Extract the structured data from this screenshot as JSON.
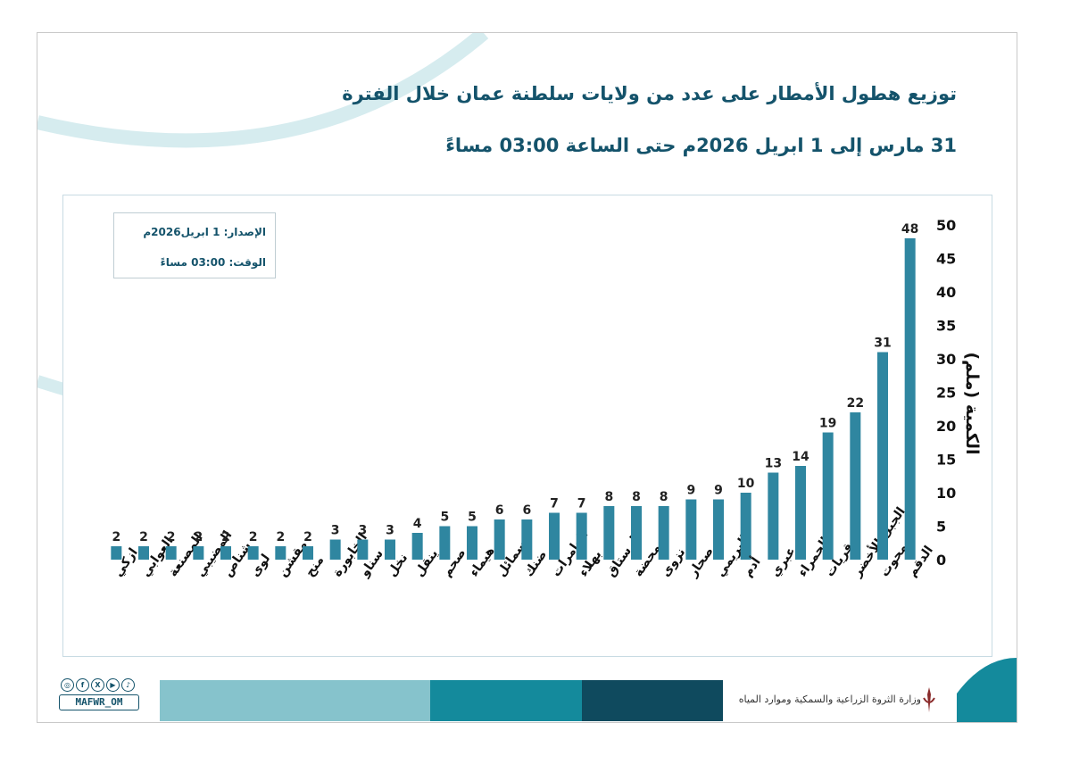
{
  "title_line1": "توزيع هطول الأمطار على عدد من ولايات سلطنة عمان خلال الفترة",
  "title_line2": "31 مارس إلى 1 ابريل 2026م حتى الساعة 03:00 مساءً",
  "info": {
    "release": "الإصدار: 1 ابريل2026م",
    "time": "الوقت: 03:00 مساءً"
  },
  "footer": {
    "ministry": "وزارة الثروة الزراعية والسمكية وموارد المياه",
    "social_handle": "MAFWR_OM",
    "social_icons": [
      "instagram-icon",
      "facebook-icon",
      "x-icon",
      "youtube-icon",
      "tiktok-icon"
    ]
  },
  "colors": {
    "bar": "#2f86a0",
    "title": "#14536b",
    "band_light": "#86c3cc",
    "band_mid": "#148a9c",
    "band_dark": "#0f4a5e"
  },
  "chart_data": {
    "type": "bar",
    "title": "",
    "ylabel": "الكمية (ملم)",
    "xlabel": "",
    "ylim": [
      0,
      50
    ],
    "yticks": [
      0,
      5,
      10,
      15,
      20,
      25,
      30,
      35,
      40,
      45,
      50
    ],
    "y_axis_side": "right",
    "grid": false,
    "categories": [
      "ازكي",
      "العوابي",
      "المصنعة",
      "المضيبي",
      "شناص",
      "لوى",
      "مقشن",
      "منح",
      "الخابورة",
      "سناو",
      "نخل",
      "ينقل",
      "صحم",
      "هيماء",
      "سمائل",
      "ضنك",
      "العامرات",
      "بهلاء",
      "الرستاق",
      "محضة",
      "نزوى",
      "صحار",
      "البريمي",
      "أدم",
      "عبري",
      "الحمراء",
      "قريات",
      "الجبل الأخضر",
      "محوت",
      "الدقم"
    ],
    "values": [
      2,
      2,
      2,
      2,
      2,
      2,
      2,
      2,
      3,
      3,
      3,
      4,
      5,
      5,
      6,
      6,
      7,
      7,
      8,
      8,
      8,
      9,
      9,
      10,
      13,
      14,
      19,
      22,
      31,
      48
    ]
  }
}
